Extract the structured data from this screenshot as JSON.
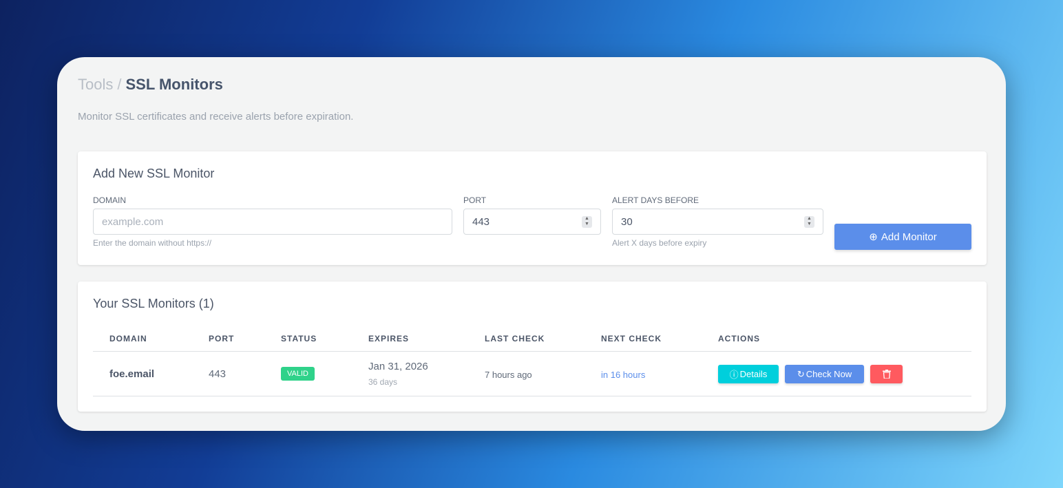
{
  "breadcrumb": {
    "parent": "Tools",
    "separator": "/",
    "current": "SSL Monitors"
  },
  "subtitle": "Monitor SSL certificates and receive alerts before expiration.",
  "add_form": {
    "title": "Add New SSL Monitor",
    "domain": {
      "label": "DOMAIN",
      "placeholder": "example.com",
      "hint": "Enter the domain without https://"
    },
    "port": {
      "label": "PORT",
      "value": "443"
    },
    "alert_days": {
      "label": "ALERT DAYS BEFORE",
      "value": "30",
      "hint": "Alert X days before expiry"
    },
    "submit_label": "Add Monitor"
  },
  "monitors": {
    "title": "Your SSL Monitors (1)",
    "columns": [
      "DOMAIN",
      "PORT",
      "STATUS",
      "EXPIRES",
      "LAST CHECK",
      "NEXT CHECK",
      "ACTIONS"
    ],
    "rows": [
      {
        "domain": "foe.email",
        "port": "443",
        "status": "VALID",
        "expires": "Jan 31, 2026",
        "expires_in": "36 days",
        "last_check": "7 hours ago",
        "next_check": "in 16 hours",
        "details_label": "Details",
        "check_label": "Check Now"
      }
    ]
  },
  "colors": {
    "accent": "#5b8eea",
    "valid": "#2fd28a",
    "details": "#00cfdc",
    "danger": "#ff5a5f"
  }
}
